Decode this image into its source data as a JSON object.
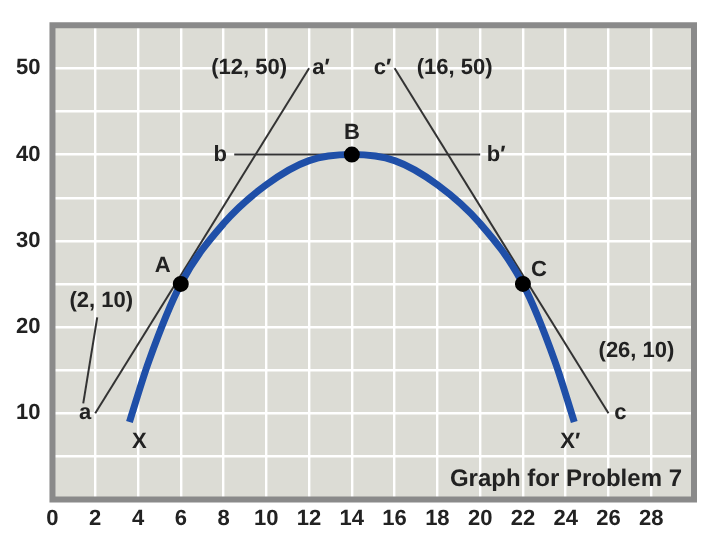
{
  "chart_data": {
    "type": "line",
    "xlim": [
      0,
      30
    ],
    "xticks": [
      0,
      2,
      4,
      6,
      8,
      10,
      12,
      14,
      16,
      18,
      20,
      22,
      24,
      26,
      28
    ],
    "ylim": [
      0,
      55
    ],
    "yticks": [
      {
        "value": 5,
        "label": null
      },
      10,
      {
        "value": 15,
        "label": null
      },
      20,
      {
        "value": 25,
        "label": null
      },
      30,
      {
        "value": 35,
        "label": null
      },
      40,
      {
        "value": 45,
        "label": null
      },
      50
    ],
    "grid": true,
    "legend": false,
    "series": [
      {
        "color": "#1f4fa8",
        "marker": "none",
        "x": [
          3.6,
          4.5,
          6,
          8,
          10,
          12,
          14,
          16,
          18,
          20,
          22,
          23.5,
          24.4
        ],
        "values": [
          9,
          16,
          25,
          32,
          36.5,
          39.3,
          40,
          39.3,
          36.5,
          32,
          25,
          16,
          9
        ]
      },
      {
        "color": "#333333",
        "marker": "none",
        "x": [
          2,
          12
        ],
        "values": [
          10,
          50
        ]
      },
      {
        "color": "#333333",
        "marker": "none",
        "x": [
          8.5,
          20
        ],
        "values": [
          40,
          40
        ]
      },
      {
        "color": "#333333",
        "marker": "none",
        "x": [
          16,
          26
        ],
        "values": [
          50,
          10
        ]
      },
      {
        "type": "scatter",
        "color": "#000000",
        "marker": "circle",
        "x": [
          6,
          14,
          22
        ],
        "values": [
          25,
          40,
          25
        ]
      }
    ],
    "annotations": [
      {
        "text": "(12, 50)",
        "x": 12,
        "y": 50
      },
      {
        "text": "a′",
        "x": 12,
        "y": 50
      },
      {
        "text": "c′",
        "x": 16,
        "y": 50
      },
      {
        "text": "(16, 50)",
        "x": 16,
        "y": 50
      },
      {
        "text": "b",
        "x": 8.5,
        "y": 40
      },
      {
        "text": "b′",
        "x": 20,
        "y": 40
      },
      {
        "text": "B",
        "x": 14,
        "y": 40
      },
      {
        "text": "A",
        "x": 6,
        "y": 25
      },
      {
        "text": "C",
        "x": 22,
        "y": 25
      },
      {
        "text": "(2, 10)",
        "x": 2,
        "y": 10
      },
      {
        "text": "a",
        "x": 2,
        "y": 10
      },
      {
        "text": "(26, 10)",
        "x": 26,
        "y": 10
      },
      {
        "text": "c",
        "x": 26,
        "y": 10
      },
      {
        "text": "X",
        "x": 3.6,
        "y": 9
      },
      {
        "text": "X′",
        "x": 24.4,
        "y": 9
      },
      "Graph for Problem 7"
    ]
  }
}
